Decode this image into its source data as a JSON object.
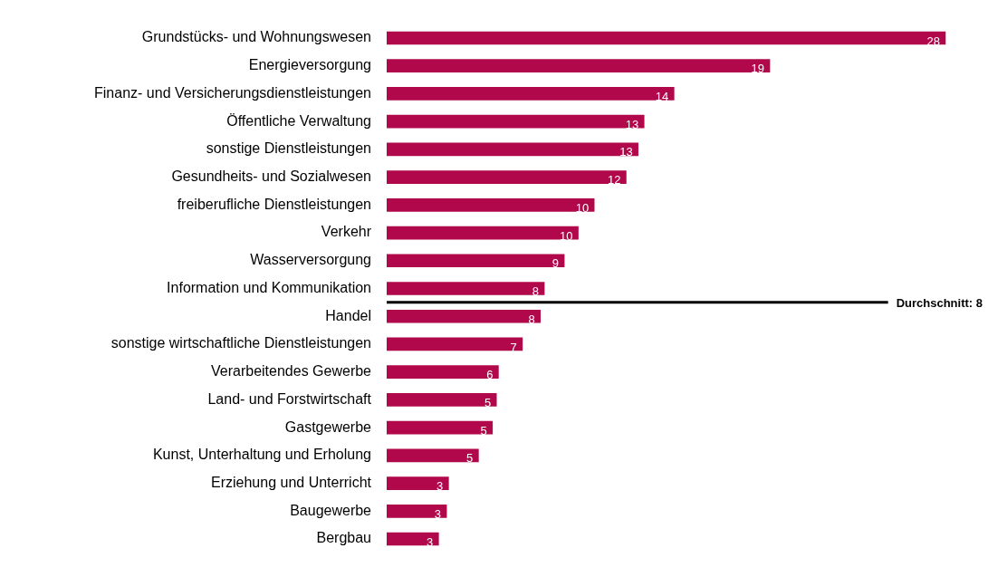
{
  "chart_data": {
    "type": "bar",
    "orientation": "horizontal",
    "categories": [
      "Grundstücks- und Wohnungswesen",
      "Energieversorgung",
      "Finanz- und Versicherungsdienstleistungen",
      "Öffentliche Verwaltung",
      "sonstige Dienstleistungen",
      "Gesundheits- und Sozialwesen",
      "freiberufliche Dienstleistungen",
      "Verkehr",
      "Wasserversorgung",
      "Information und Kommunikation",
      "Handel",
      "sonstige wirtschaftliche Dienstleistungen",
      "Verarbeitendes Gewerbe",
      "Land- und Forstwirtschaft",
      "Gastgewerbe",
      "Kunst, Unterhaltung und Erholung",
      "Erziehung und Unterricht",
      "Baugewerbe",
      "Bergbau"
    ],
    "values": [
      28,
      19.2,
      14.4,
      12.9,
      12.6,
      12,
      10.4,
      9.6,
      8.9,
      7.9,
      7.7,
      6.8,
      5.6,
      5.5,
      5.3,
      4.6,
      3.1,
      3,
      2.6
    ],
    "value_labels": [
      "28",
      "19",
      "14",
      "13",
      "13",
      "12",
      "10",
      "10",
      "9",
      "8",
      "8",
      "7",
      "6",
      "5",
      "5",
      "5",
      "3",
      "3",
      "3"
    ],
    "color": "#b0084a",
    "annotations": [
      "Durchschnitt: 8"
    ],
    "tick_labels": "y"
  }
}
